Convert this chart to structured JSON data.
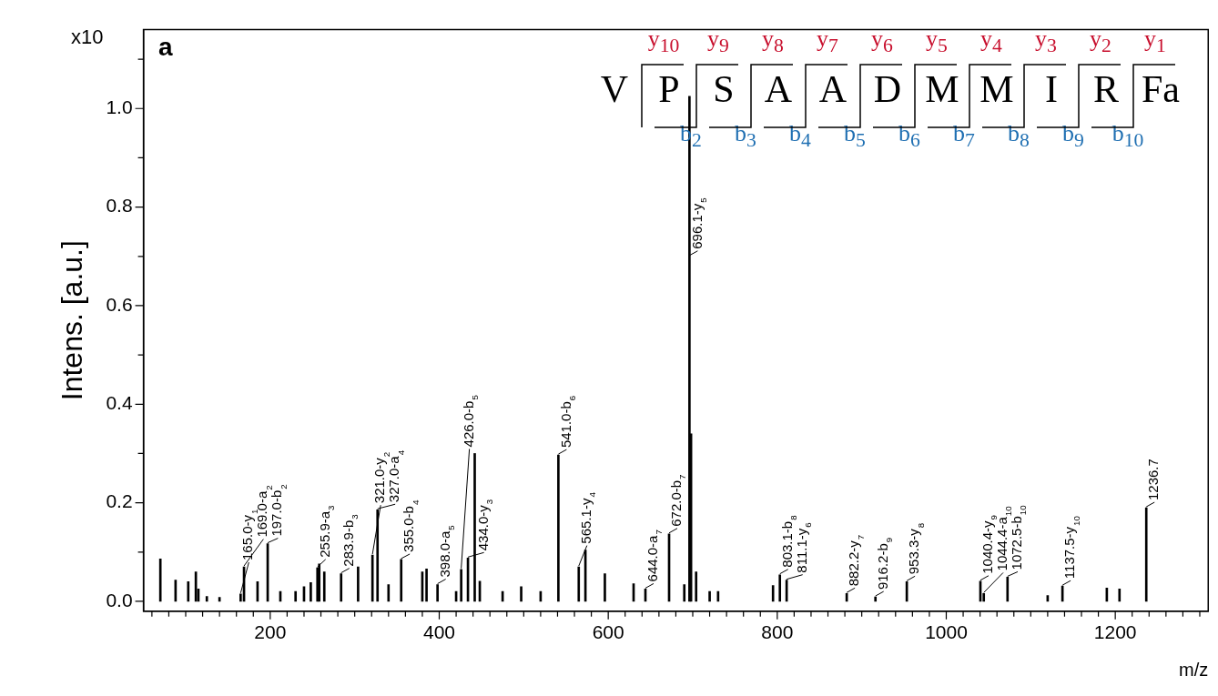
{
  "chart_data": {
    "type": "bar",
    "xlabel": "m/z",
    "ylabel": "Intens. [a.u.]",
    "color": "#000000",
    "x": [
      70,
      88,
      103,
      112,
      115,
      125,
      140,
      165.0,
      169.0,
      185,
      197.0,
      212,
      230,
      240,
      248,
      255.9,
      258,
      264,
      283.9,
      304,
      321.0,
      327.0,
      340,
      355.0,
      380,
      385,
      398.0,
      420,
      426.0,
      434.0,
      442,
      448,
      475,
      497,
      520,
      541.0,
      565.1,
      573,
      596,
      630,
      644.0,
      672.0,
      690,
      696.1,
      698,
      704,
      720,
      730,
      795,
      803.1,
      811.1,
      882.2,
      916.2,
      953.3,
      1040.4,
      1044.4,
      1072.5,
      1120,
      1137.5,
      1190,
      1205,
      1236.7
    ],
    "values": [
      0.086,
      0.043,
      0.04,
      0.06,
      0.025,
      0.01,
      0.008,
      0.015,
      0.07,
      0.04,
      0.117,
      0.02,
      0.02,
      0.03,
      0.038,
      0.068,
      0.076,
      0.06,
      0.056,
      0.07,
      0.094,
      0.186,
      0.034,
      0.085,
      0.06,
      0.066,
      0.034,
      0.02,
      0.065,
      0.088,
      0.3,
      0.041,
      0.02,
      0.03,
      0.02,
      0.297,
      0.07,
      0.104,
      0.056,
      0.036,
      0.025,
      0.137,
      0.034,
      1.025,
      0.34,
      0.06,
      0.02,
      0.02,
      0.032,
      0.054,
      0.043,
      0.016,
      0.009,
      0.04,
      0.041,
      0.016,
      0.049,
      0.012,
      0.031,
      0.027,
      0.025,
      0.19
    ],
    "xlim": [
      50,
      1310
    ],
    "ylim": [
      -0.02,
      1.16
    ],
    "xticks": [
      {
        "value": 60,
        "label": null
      },
      {
        "value": 80,
        "label": null
      },
      {
        "value": 100,
        "label": null
      },
      {
        "value": 120,
        "label": null
      },
      {
        "value": 140,
        "label": null
      },
      {
        "value": 160,
        "label": null
      },
      {
        "value": 180,
        "label": null
      },
      200,
      {
        "value": 220,
        "label": null
      },
      {
        "value": 240,
        "label": null
      },
      {
        "value": 260,
        "label": null
      },
      {
        "value": 280,
        "label": null
      },
      {
        "value": 300,
        "label": null
      },
      {
        "value": 320,
        "label": null
      },
      {
        "value": 340,
        "label": null
      },
      {
        "value": 360,
        "label": null
      },
      {
        "value": 380,
        "label": null
      },
      400,
      {
        "value": 420,
        "label": null
      },
      {
        "value": 440,
        "label": null
      },
      {
        "value": 460,
        "label": null
      },
      {
        "value": 480,
        "label": null
      },
      {
        "value": 500,
        "label": null
      },
      {
        "value": 520,
        "label": null
      },
      {
        "value": 540,
        "label": null
      },
      {
        "value": 560,
        "label": null
      },
      {
        "value": 580,
        "label": null
      },
      600,
      {
        "value": 620,
        "label": null
      },
      {
        "value": 640,
        "label": null
      },
      {
        "value": 660,
        "label": null
      },
      {
        "value": 680,
        "label": null
      },
      {
        "value": 700,
        "label": null
      },
      {
        "value": 720,
        "label": null
      },
      {
        "value": 740,
        "label": null
      },
      {
        "value": 760,
        "label": null
      },
      {
        "value": 780,
        "label": null
      },
      800,
      {
        "value": 820,
        "label": null
      },
      {
        "value": 840,
        "label": null
      },
      {
        "value": 860,
        "label": null
      },
      {
        "value": 880,
        "label": null
      },
      {
        "value": 900,
        "label": null
      },
      {
        "value": 920,
        "label": null
      },
      {
        "value": 940,
        "label": null
      },
      {
        "value": 960,
        "label": null
      },
      {
        "value": 980,
        "label": null
      },
      1000,
      {
        "value": 1020,
        "label": null
      },
      {
        "value": 1040,
        "label": null
      },
      {
        "value": 1060,
        "label": null
      },
      {
        "value": 1080,
        "label": null
      },
      {
        "value": 1100,
        "label": null
      },
      {
        "value": 1120,
        "label": null
      },
      {
        "value": 1140,
        "label": null
      },
      {
        "value": 1160,
        "label": null
      },
      {
        "value": 1180,
        "label": null
      },
      1200,
      {
        "value": 1220,
        "label": null
      },
      {
        "value": 1240,
        "label": null
      },
      {
        "value": 1260,
        "label": null
      },
      {
        "value": 1280,
        "label": null
      },
      {
        "value": 1300,
        "label": null
      }
    ],
    "yticks": [
      {
        "value": 0,
        "label": "0.0"
      },
      {
        "value": 0.1,
        "label": null
      },
      {
        "value": 0.2,
        "label": "0.2"
      },
      {
        "value": 0.3,
        "label": null
      },
      {
        "value": 0.4,
        "label": "0.4"
      },
      {
        "value": 0.5,
        "label": null
      },
      {
        "value": 0.6,
        "label": "0.6"
      },
      {
        "value": 0.7,
        "label": null
      },
      {
        "value": 0.8,
        "label": "0.8"
      },
      {
        "value": 0.9,
        "label": null
      },
      {
        "value": 1.0,
        "label": "1.0"
      },
      {
        "value": 1.1,
        "label": null
      }
    ],
    "annotations": [
      "a",
      "x10",
      "V P S A A D M M I R Fa",
      "y$_{10}$ y$_{9}$ y$_{8}$ y$_{7}$ y$_{6}$ y$_{5}$ y$_{4}$ y$_{3}$ y$_{2}$ y$_{1}$",
      "b$_{2}$ b$_{3}$ b$_{4}$ b$_{5}$ b$_{6}$ b$_{7}$ b$_{8}$ b$_{9}$ b$_{10}$",
      {
        "text": "165.0-y$_{1}$",
        "x": 165.0,
        "y": 0.015
      },
      {
        "text": "169.0-a$_{2}$",
        "x": 169.0,
        "y": 0.07
      },
      {
        "text": "197.0-b$_{2}$",
        "x": 197.0,
        "y": 0.117
      },
      {
        "text": "255.9-a$_{3}$",
        "x": 255.9,
        "y": 0.068
      },
      {
        "text": "283.9-b$_{3}$",
        "x": 283.9,
        "y": 0.056
      },
      {
        "text": "321.0-y$_{2}$",
        "x": 321.0,
        "y": 0.094
      },
      {
        "text": "327.0-a$_{4}$",
        "x": 327.0,
        "y": 0.186
      },
      {
        "text": "355.0-b$_{4}$",
        "x": 355.0,
        "y": 0.085
      },
      {
        "text": "398.0-a$_{5}$",
        "x": 398.0,
        "y": 0.034
      },
      {
        "text": "426.0-b$_{5}$",
        "x": 426.0,
        "y": 0.065
      },
      {
        "text": "434.0-y$_{3}$",
        "x": 434.0,
        "y": 0.088
      },
      {
        "text": "541.0-b$_{6}$",
        "x": 541.0,
        "y": 0.297
      },
      {
        "text": "565.1-y$_{4}$",
        "x": 565.1,
        "y": 0.07
      },
      {
        "text": "644.0-a$_{7}$",
        "x": 644.0,
        "y": 0.025
      },
      {
        "text": "672.0-b$_{7}$",
        "x": 672.0,
        "y": 0.137
      },
      {
        "text": "696.1-y$_{5}$",
        "x": 696.1,
        "y": 0.7
      },
      {
        "text": "803.1-b$_{8}$",
        "x": 803.1,
        "y": 0.054
      },
      {
        "text": "811.1-y$_{6}$",
        "x": 811.1,
        "y": 0.043
      },
      {
        "text": "882.2-y$_{7}$",
        "x": 882.2,
        "y": 0.016
      },
      {
        "text": "916.2-b$_{9}$",
        "x": 916.2,
        "y": 0.009
      },
      {
        "text": "953.3-y$_{8}$",
        "x": 953.3,
        "y": 0.04
      },
      {
        "text": "1040.4-y$_{9}$",
        "x": 1040.4,
        "y": 0.041
      },
      {
        "text": "1044.4-a$_{10}$",
        "x": 1044.4,
        "y": 0.016
      },
      {
        "text": "1072.5-b$_{10}$",
        "x": 1072.5,
        "y": 0.049
      },
      {
        "text": "1137.5-y$_{10}$",
        "x": 1137.5,
        "y": 0.031
      },
      {
        "text": "1236.7",
        "x": 1236.7,
        "y": 0.19
      }
    ]
  }
}
